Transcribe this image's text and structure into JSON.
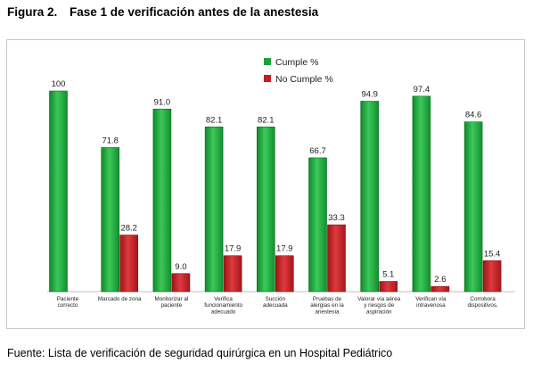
{
  "figure": {
    "label": "Figura 2.",
    "title": "Fase 1 de verificación antes de la anestesia"
  },
  "source_note": "Fuente: Lista de verificación de seguridad quirúrgica en un Hospital Pediátrico",
  "colors": {
    "cumple": "#1aa33a",
    "no_cumple": "#c41e24"
  },
  "chart_data": {
    "type": "bar",
    "categories": [
      [
        "Paciente",
        "correcto"
      ],
      [
        "Marcado de zona"
      ],
      [
        "Monitorizar al",
        "paciente"
      ],
      [
        "Verifica",
        "funcionamiento",
        "adecuado"
      ],
      [
        "Succión",
        "adecuada"
      ],
      [
        "Pruebas de",
        "alergias en la",
        "anestesia"
      ],
      [
        "Valorar vía aérea",
        "y riesgos de",
        "aspiración"
      ],
      [
        "Verifican vía",
        "intravenosa"
      ],
      [
        "Corrobora",
        "dispositivos."
      ]
    ],
    "series": [
      {
        "name": "Cumple %",
        "values": [
          100,
          71.8,
          91.0,
          82.1,
          82.1,
          66.7,
          94.9,
          97.4,
          84.6
        ],
        "labels": [
          "100",
          "71.8",
          "91.0",
          "82.1",
          "82.1",
          "66.7",
          "94.9",
          "97.4",
          "84.6"
        ]
      },
      {
        "name": "No Cumple %",
        "values": [
          null,
          28.2,
          9.0,
          17.9,
          17.9,
          33.3,
          5.1,
          2.6,
          15.4
        ],
        "labels": [
          "",
          "28.2",
          "9.0",
          "17.9",
          "17.9",
          "33.3",
          "5.1",
          "2.6",
          "15.4"
        ]
      }
    ],
    "ylim": [
      0,
      100
    ],
    "grid": false,
    "legend_position": "top-right"
  }
}
